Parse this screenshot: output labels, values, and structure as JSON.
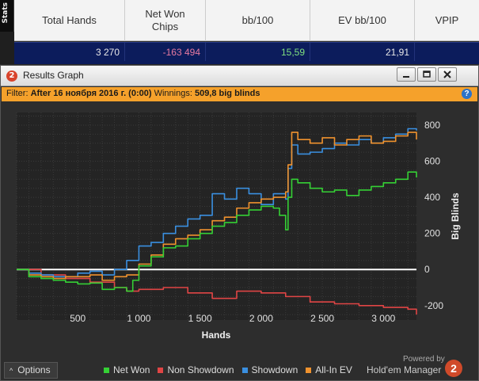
{
  "stats": {
    "tab_label": "Stats",
    "columns": [
      {
        "label": "Total Hands",
        "value": "3 270",
        "value_color": "#e8e8e8"
      },
      {
        "label": "Net Won\nChips",
        "value": "-163 494",
        "value_color": "#e77aa0"
      },
      {
        "label": "bb/100",
        "value": "15,59",
        "value_color": "#7fe07f"
      },
      {
        "label": "EV bb/100",
        "value": "21,91",
        "value_color": "#e8e8e8"
      },
      {
        "label": "VPIP",
        "value": "",
        "value_color": "#e8e8e8"
      }
    ]
  },
  "window": {
    "title": "Results Graph",
    "logo_digit": "2",
    "buttons": [
      "minimize",
      "maximize",
      "close"
    ]
  },
  "filter": {
    "prefix": "Filter:",
    "filter_value": "After 16 ноября 2016 г. (0:00)",
    "winnings_label": "Winnings:",
    "winnings_value": "509,8 big blinds",
    "help_label": "?"
  },
  "chart_data": {
    "type": "line",
    "xlabel": "Hands",
    "ylabel": "Big Blinds",
    "xlim": [
      0,
      3270
    ],
    "ylim": [
      -280,
      870
    ],
    "x_ticks": [
      500,
      1000,
      1500,
      2000,
      2500,
      3000
    ],
    "x_tick_labels": [
      "500",
      "1 000",
      "1 500",
      "2 000",
      "2 500",
      "3 000"
    ],
    "y_ticks": [
      -200,
      0,
      200,
      400,
      600,
      800
    ],
    "y_tick_labels": [
      "-200",
      "0",
      "200",
      "400",
      "600",
      "800"
    ],
    "grid": true,
    "series": [
      {
        "name": "Net Won",
        "color": "#35d035",
        "x": [
          0,
          100,
          200,
          300,
          400,
          500,
          600,
          700,
          800,
          900,
          950,
          1000,
          1100,
          1200,
          1300,
          1400,
          1500,
          1600,
          1700,
          1800,
          1900,
          2000,
          2100,
          2150,
          2200,
          2220,
          2250,
          2300,
          2400,
          2500,
          2600,
          2700,
          2800,
          2900,
          3000,
          3100,
          3200,
          3270
        ],
        "y": [
          0,
          -40,
          -50,
          -60,
          -70,
          -80,
          -75,
          -110,
          -100,
          -120,
          -60,
          20,
          70,
          120,
          130,
          170,
          200,
          240,
          260,
          300,
          330,
          350,
          340,
          300,
          220,
          400,
          500,
          480,
          450,
          430,
          440,
          410,
          440,
          460,
          480,
          500,
          540,
          510
        ]
      },
      {
        "name": "Non Showdown",
        "color": "#e04545",
        "x": [
          0,
          200,
          400,
          600,
          800,
          900,
          1000,
          1200,
          1400,
          1600,
          1800,
          2000,
          2200,
          2400,
          2600,
          2800,
          3000,
          3200,
          3270
        ],
        "y": [
          0,
          -30,
          -50,
          -70,
          -100,
          -120,
          -110,
          -100,
          -130,
          -160,
          -120,
          -130,
          -150,
          -180,
          -190,
          -200,
          -210,
          -220,
          -250
        ]
      },
      {
        "name": "Showdown",
        "color": "#3a8fe0",
        "x": [
          0,
          100,
          200,
          300,
          400,
          500,
          600,
          700,
          800,
          900,
          1000,
          1100,
          1200,
          1300,
          1400,
          1500,
          1600,
          1700,
          1800,
          1900,
          2000,
          2100,
          2200,
          2220,
          2250,
          2300,
          2400,
          2500,
          2600,
          2700,
          2800,
          2900,
          3000,
          3100,
          3200,
          3270
        ],
        "y": [
          0,
          -20,
          -30,
          -40,
          -40,
          -20,
          -10,
          -30,
          0,
          50,
          130,
          150,
          200,
          240,
          280,
          300,
          420,
          390,
          450,
          420,
          360,
          420,
          390,
          560,
          690,
          640,
          650,
          670,
          700,
          690,
          720,
          700,
          730,
          750,
          780,
          770
        ]
      },
      {
        "name": "All-In EV",
        "color": "#f0922e",
        "x": [
          0,
          100,
          200,
          300,
          400,
          500,
          600,
          700,
          800,
          900,
          1000,
          1100,
          1200,
          1300,
          1400,
          1500,
          1600,
          1700,
          1800,
          1900,
          2000,
          2100,
          2200,
          2220,
          2250,
          2300,
          2400,
          2500,
          2600,
          2700,
          2800,
          2900,
          3000,
          3100,
          3200,
          3270
        ],
        "y": [
          0,
          -30,
          -40,
          -50,
          -40,
          -40,
          -30,
          -60,
          -40,
          -30,
          30,
          80,
          140,
          170,
          190,
          220,
          270,
          290,
          340,
          370,
          390,
          400,
          430,
          580,
          760,
          720,
          700,
          730,
          690,
          720,
          740,
          700,
          710,
          740,
          760,
          720
        ]
      }
    ]
  },
  "footer": {
    "options_label": "Options",
    "powered_by": "Powered by",
    "brand": "Hold'em Manager",
    "brand_digit": "2",
    "legend": [
      {
        "label": "Net Won",
        "color": "#35d035"
      },
      {
        "label": "Non Showdown",
        "color": "#e04545"
      },
      {
        "label": "Showdown",
        "color": "#3a8fe0"
      },
      {
        "label": "All-In EV",
        "color": "#f0922e"
      }
    ]
  }
}
